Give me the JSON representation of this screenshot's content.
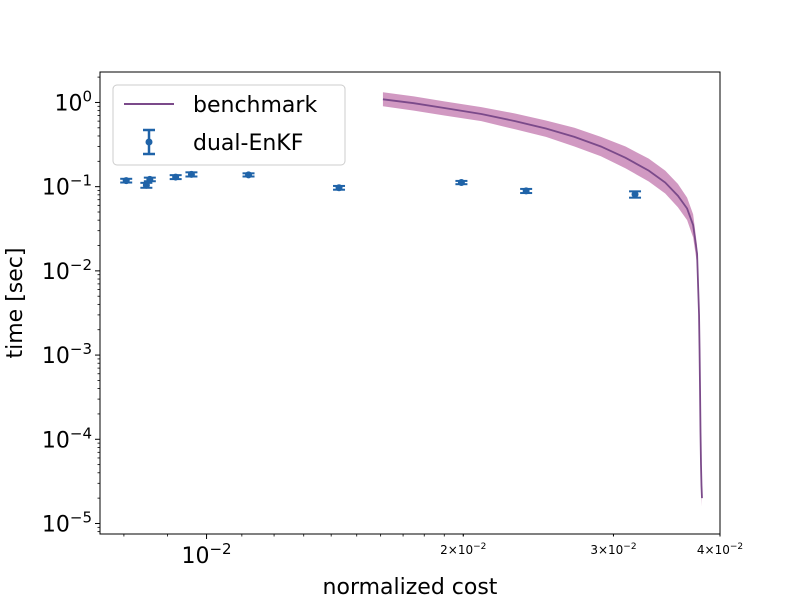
{
  "chart_data": {
    "type": "scatter",
    "xlabel": "normalized cost",
    "ylabel": "time [sec]",
    "xscale": "log",
    "yscale": "log",
    "xlim": [
      0.0075,
      0.04
    ],
    "ylim": [
      7.5e-06,
      2.3
    ],
    "grid": false,
    "legend_position": "upper-left",
    "x_ticks": [
      {
        "value": 0.01,
        "base": "10",
        "exp": "−2",
        "mantissa": ""
      },
      {
        "value": 0.02,
        "base": "10",
        "exp": "−2",
        "mantissa": "2×"
      },
      {
        "value": 0.03,
        "base": "10",
        "exp": "−2",
        "mantissa": "3×"
      },
      {
        "value": 0.04,
        "base": "10",
        "exp": "−2",
        "mantissa": "4×"
      }
    ],
    "y_ticks": [
      {
        "value": 1,
        "base": "10",
        "exp": "0"
      },
      {
        "value": 0.1,
        "base": "10",
        "exp": "−1"
      },
      {
        "value": 0.01,
        "base": "10",
        "exp": "−2"
      },
      {
        "value": 0.001,
        "base": "10",
        "exp": "−3"
      },
      {
        "value": 0.0001,
        "base": "10",
        "exp": "−4"
      },
      {
        "value": 1e-05,
        "base": "10",
        "exp": "−5"
      }
    ],
    "series": [
      {
        "name": "benchmark",
        "kind": "line-band",
        "color": "#7b4a8a",
        "band_color": "#c987b7",
        "x": [
          0.0161,
          0.0175,
          0.019,
          0.021,
          0.023,
          0.025,
          0.027,
          0.029,
          0.031,
          0.033,
          0.0345,
          0.0357,
          0.0366,
          0.0372,
          0.0376,
          0.0378,
          0.03785,
          0.0379,
          0.03795,
          0.038,
          0.03805,
          0.0381
        ],
        "y": [
          1.09,
          0.98,
          0.86,
          0.73,
          0.6,
          0.49,
          0.39,
          0.3,
          0.22,
          0.155,
          0.112,
          0.078,
          0.055,
          0.035,
          0.016,
          0.003,
          0.0012,
          0.0004,
          0.00012,
          5e-05,
          2.8e-05,
          2e-05
        ],
        "lower": [
          0.9,
          0.8,
          0.7,
          0.6,
          0.48,
          0.39,
          0.3,
          0.23,
          0.165,
          0.115,
          0.083,
          0.057,
          0.04,
          0.025,
          0.012,
          0.0022,
          0.0009,
          0.0003,
          9e-05,
          4e-05,
          2.2e-05,
          1.6e-05
        ],
        "upper": [
          1.32,
          1.18,
          1.03,
          0.88,
          0.74,
          0.61,
          0.5,
          0.39,
          0.3,
          0.215,
          0.155,
          0.108,
          0.074,
          0.047,
          0.02,
          0.004,
          0.0016,
          0.00053,
          0.00016,
          6.5e-05,
          3.6e-05,
          2.6e-05
        ]
      },
      {
        "name": "dual-EnKF",
        "kind": "errorbar",
        "color": "#1f63a8",
        "points": [
          {
            "x": 0.00805,
            "y": 0.118,
            "err_low": 0.006,
            "err_high": 0.006
          },
          {
            "x": 0.0085,
            "y": 0.104,
            "err_low": 0.007,
            "err_high": 0.007
          },
          {
            "x": 0.00858,
            "y": 0.122,
            "err_low": 0.006,
            "err_high": 0.006
          },
          {
            "x": 0.0092,
            "y": 0.13,
            "err_low": 0.007,
            "err_high": 0.007
          },
          {
            "x": 0.0096,
            "y": 0.14,
            "err_low": 0.008,
            "err_high": 0.008
          },
          {
            "x": 0.0112,
            "y": 0.138,
            "err_low": 0.006,
            "err_high": 0.006
          },
          {
            "x": 0.0143,
            "y": 0.097,
            "err_low": 0.005,
            "err_high": 0.005
          },
          {
            "x": 0.0199,
            "y": 0.112,
            "err_low": 0.005,
            "err_high": 0.005
          },
          {
            "x": 0.0237,
            "y": 0.089,
            "err_low": 0.005,
            "err_high": 0.005
          },
          {
            "x": 0.0318,
            "y": 0.081,
            "err_low": 0.007,
            "err_high": 0.007
          }
        ]
      }
    ]
  }
}
